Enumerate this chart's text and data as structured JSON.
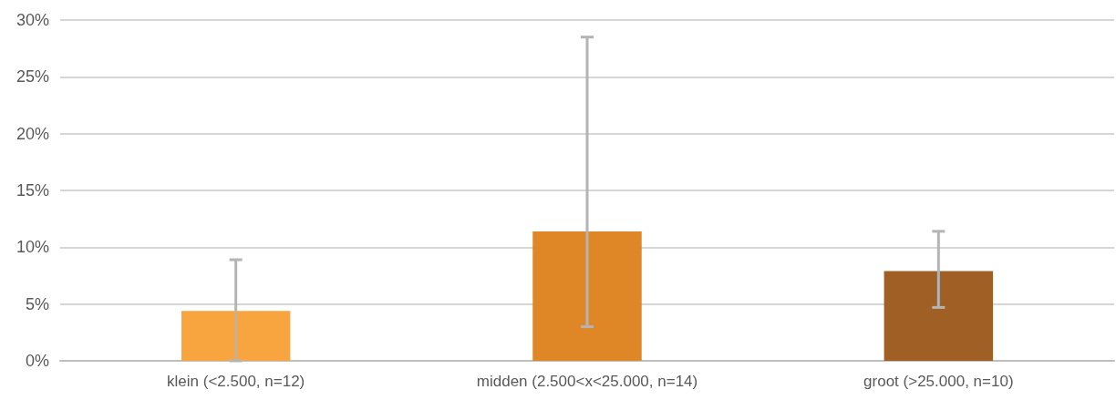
{
  "chart_data": {
    "type": "bar",
    "categories": [
      "klein (<2.500, n=12)",
      "midden (2.500<x<25.000, n=14)",
      "groot (>25.000, n=10)"
    ],
    "values": [
      4.4,
      11.4,
      7.9
    ],
    "colors": [
      "#f9a53f",
      "#df8626",
      "#a05f24"
    ],
    "errors": [
      [
        0,
        8.9
      ],
      [
        3.0,
        28.5
      ],
      [
        4.7,
        11.4
      ]
    ],
    "ylim": [
      0,
      30
    ],
    "yticks": [
      {
        "value": 0,
        "label": "0%"
      },
      {
        "value": 5,
        "label": "5%"
      },
      {
        "value": 10,
        "label": "10%"
      },
      {
        "value": 15,
        "label": "15%"
      },
      {
        "value": 20,
        "label": "20%"
      },
      {
        "value": 25,
        "label": "25%"
      },
      {
        "value": 30,
        "label": "30%"
      }
    ],
    "grid": "y"
  }
}
